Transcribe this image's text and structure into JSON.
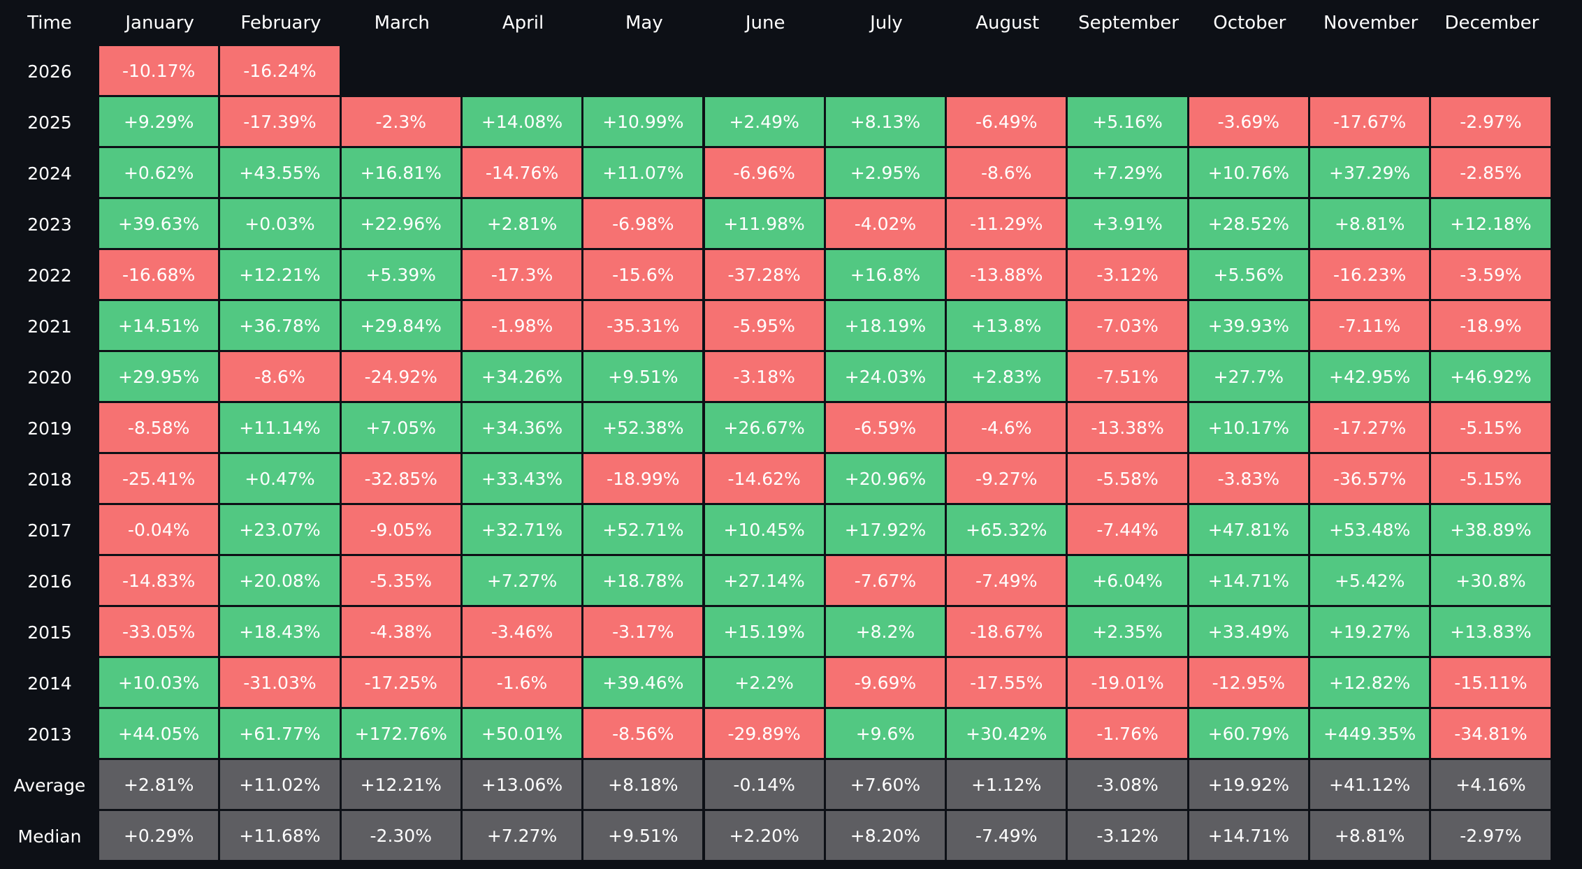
{
  "table": {
    "header": [
      "Time",
      "January",
      "February",
      "March",
      "April",
      "May",
      "June",
      "July",
      "August",
      "September",
      "October",
      "November",
      "December"
    ],
    "rows": [
      {
        "label": "2026",
        "cells": [
          "-10.17%",
          "-16.24%"
        ]
      },
      {
        "label": "2025",
        "cells": [
          "+9.29%",
          "-17.39%",
          "-2.3%",
          "+14.08%",
          "+10.99%",
          "+2.49%",
          "+8.13%",
          "-6.49%",
          "+5.16%",
          "-3.69%",
          "-17.67%",
          "-2.97%"
        ]
      },
      {
        "label": "2024",
        "cells": [
          "+0.62%",
          "+43.55%",
          "+16.81%",
          "-14.76%",
          "+11.07%",
          "-6.96%",
          "+2.95%",
          "-8.6%",
          "+7.29%",
          "+10.76%",
          "+37.29%",
          "-2.85%"
        ]
      },
      {
        "label": "2023",
        "cells": [
          "+39.63%",
          "+0.03%",
          "+22.96%",
          "+2.81%",
          "-6.98%",
          "+11.98%",
          "-4.02%",
          "-11.29%",
          "+3.91%",
          "+28.52%",
          "+8.81%",
          "+12.18%"
        ]
      },
      {
        "label": "2022",
        "cells": [
          "-16.68%",
          "+12.21%",
          "+5.39%",
          "-17.3%",
          "-15.6%",
          "-37.28%",
          "+16.8%",
          "-13.88%",
          "-3.12%",
          "+5.56%",
          "-16.23%",
          "-3.59%"
        ]
      },
      {
        "label": "2021",
        "cells": [
          "+14.51%",
          "+36.78%",
          "+29.84%",
          "-1.98%",
          "-35.31%",
          "-5.95%",
          "+18.19%",
          "+13.8%",
          "-7.03%",
          "+39.93%",
          "-7.11%",
          "-18.9%"
        ]
      },
      {
        "label": "2020",
        "cells": [
          "+29.95%",
          "-8.6%",
          "-24.92%",
          "+34.26%",
          "+9.51%",
          "-3.18%",
          "+24.03%",
          "+2.83%",
          "-7.51%",
          "+27.7%",
          "+42.95%",
          "+46.92%"
        ]
      },
      {
        "label": "2019",
        "cells": [
          "-8.58%",
          "+11.14%",
          "+7.05%",
          "+34.36%",
          "+52.38%",
          "+26.67%",
          "-6.59%",
          "-4.6%",
          "-13.38%",
          "+10.17%",
          "-17.27%",
          "-5.15%"
        ]
      },
      {
        "label": "2018",
        "cells": [
          "-25.41%",
          "+0.47%",
          "-32.85%",
          "+33.43%",
          "-18.99%",
          "-14.62%",
          "+20.96%",
          "-9.27%",
          "-5.58%",
          "-3.83%",
          "-36.57%",
          "-5.15%"
        ]
      },
      {
        "label": "2017",
        "cells": [
          "-0.04%",
          "+23.07%",
          "-9.05%",
          "+32.71%",
          "+52.71%",
          "+10.45%",
          "+17.92%",
          "+65.32%",
          "-7.44%",
          "+47.81%",
          "+53.48%",
          "+38.89%"
        ]
      },
      {
        "label": "2016",
        "cells": [
          "-14.83%",
          "+20.08%",
          "-5.35%",
          "+7.27%",
          "+18.78%",
          "+27.14%",
          "-7.67%",
          "-7.49%",
          "+6.04%",
          "+14.71%",
          "+5.42%",
          "+30.8%"
        ]
      },
      {
        "label": "2015",
        "cells": [
          "-33.05%",
          "+18.43%",
          "-4.38%",
          "-3.46%",
          "-3.17%",
          "+15.19%",
          "+8.2%",
          "-18.67%",
          "+2.35%",
          "+33.49%",
          "+19.27%",
          "+13.83%"
        ]
      },
      {
        "label": "2014",
        "cells": [
          "+10.03%",
          "-31.03%",
          "-17.25%",
          "-1.6%",
          "+39.46%",
          "+2.2%",
          "-9.69%",
          "-17.55%",
          "-19.01%",
          "-12.95%",
          "+12.82%",
          "-15.11%"
        ]
      },
      {
        "label": "2013",
        "cells": [
          "+44.05%",
          "+61.77%",
          "+172.76%",
          "+50.01%",
          "-8.56%",
          "-29.89%",
          "+9.6%",
          "+30.42%",
          "-1.76%",
          "+60.79%",
          "+449.35%",
          "-34.81%"
        ]
      }
    ],
    "summary": [
      {
        "label": "Average",
        "cells": [
          "+2.81%",
          "+11.02%",
          "+12.21%",
          "+13.06%",
          "+8.18%",
          "-0.14%",
          "+7.60%",
          "+1.12%",
          "-3.08%",
          "+19.92%",
          "+41.12%",
          "+4.16%"
        ]
      },
      {
        "label": "Median",
        "cells": [
          "+0.29%",
          "+11.68%",
          "-2.30%",
          "+7.27%",
          "+9.51%",
          "+2.20%",
          "+8.20%",
          "-7.49%",
          "-3.12%",
          "+14.71%",
          "+8.81%",
          "-2.97%"
        ]
      }
    ]
  }
}
